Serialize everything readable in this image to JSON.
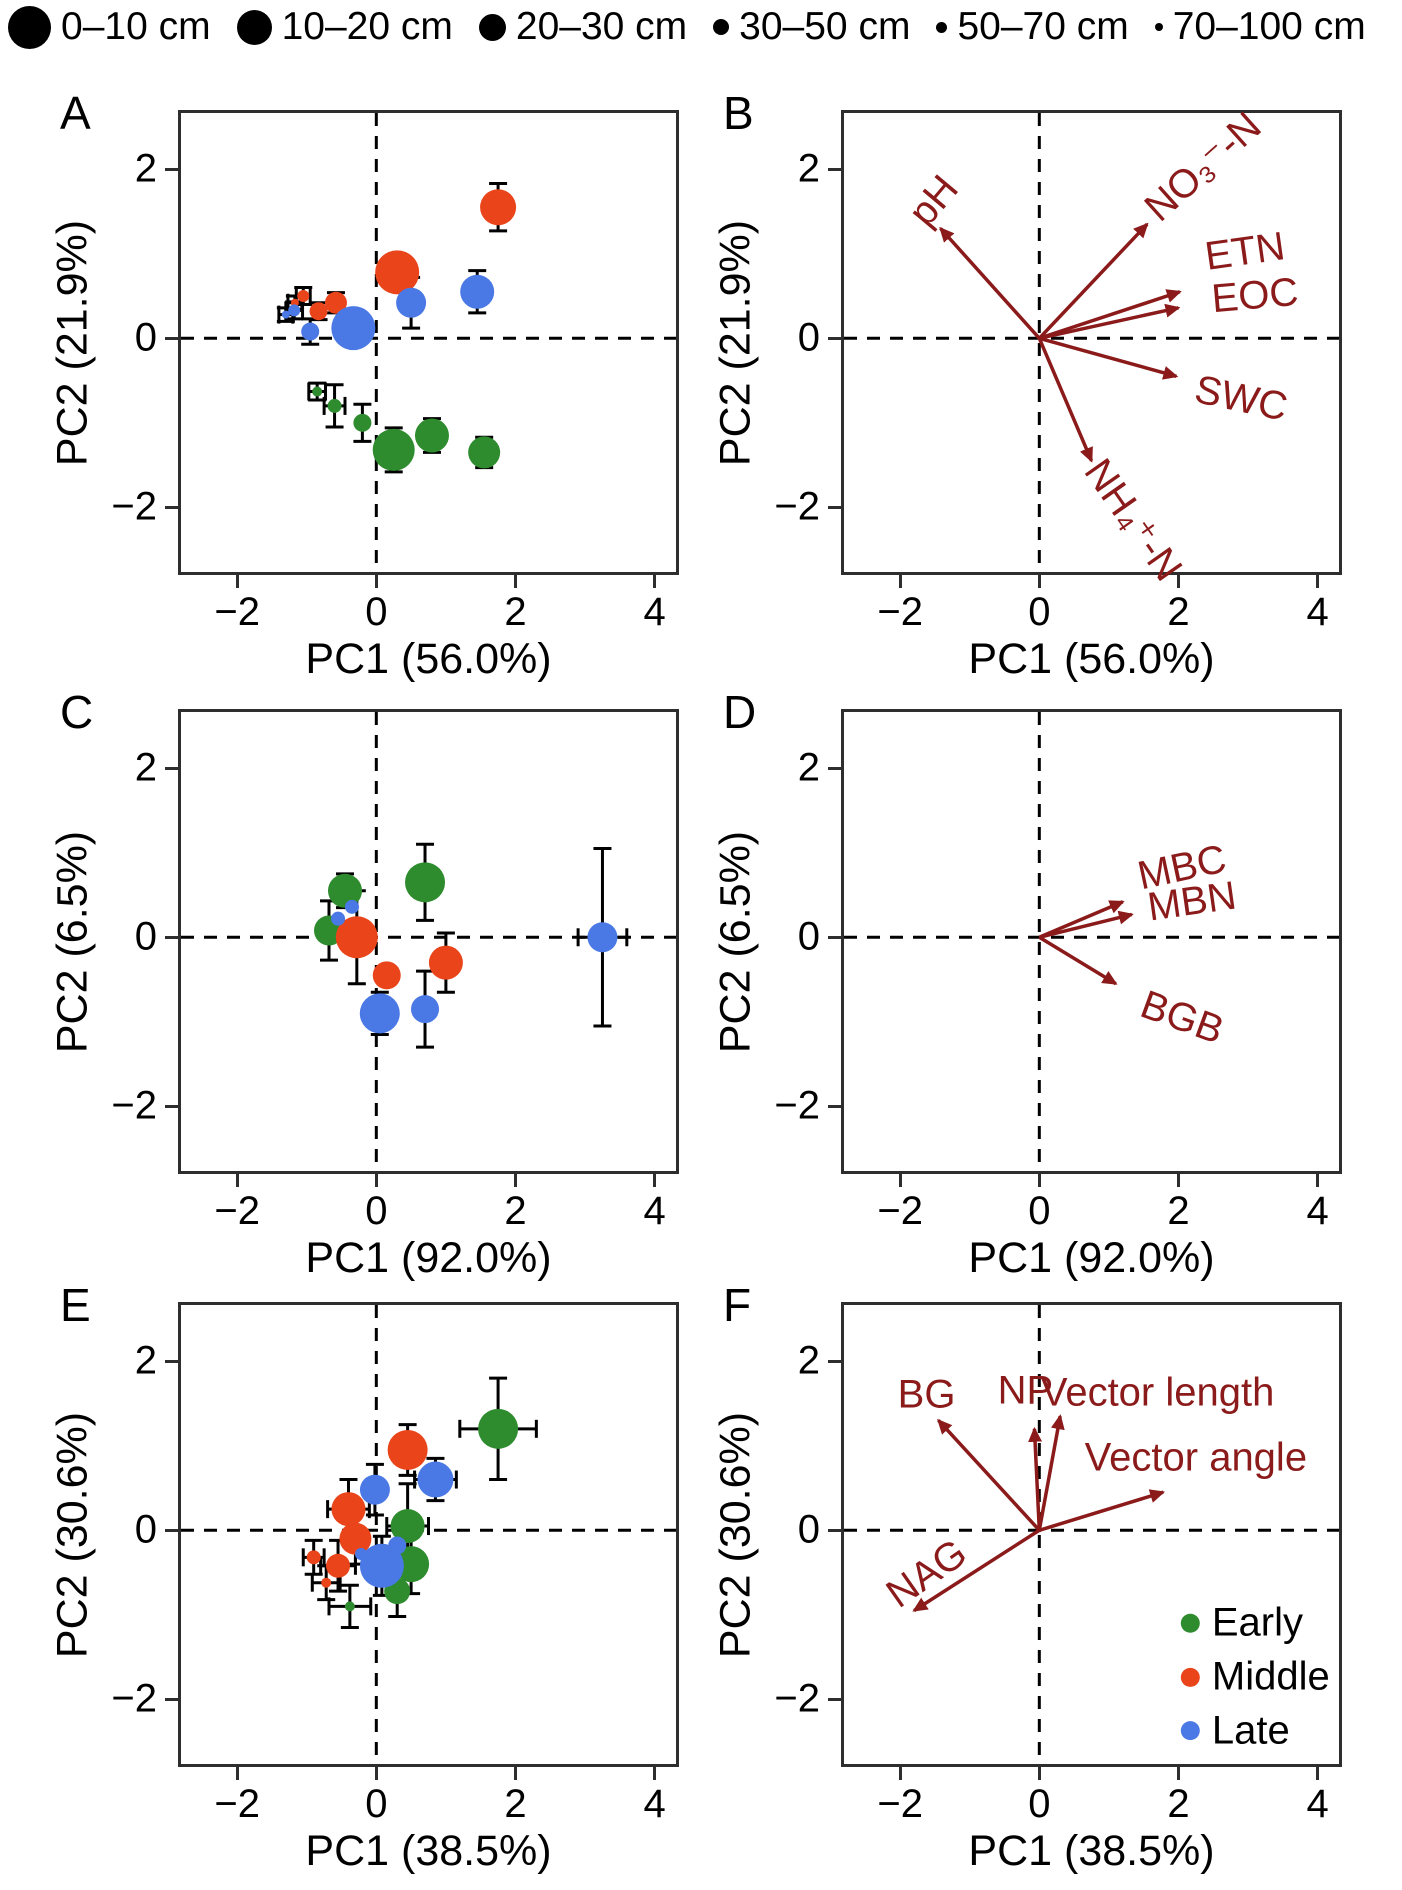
{
  "colors": {
    "early": "#2E8B2E",
    "middle": "#E9441A",
    "late": "#4A79E6",
    "vector": "#8B1A1A",
    "axis": "#2E2E2E",
    "errorbar": "#000000",
    "text": "#000000"
  },
  "size_legend": {
    "items": [
      {
        "label": "0–10 cm",
        "radius": 21.5
      },
      {
        "label": "10–20 cm",
        "radius": 17.5
      },
      {
        "label": "20–30 cm",
        "radius": 13.5
      },
      {
        "label": "30–50 cm",
        "radius": 8
      },
      {
        "label": "50–70 cm",
        "radius": 5.5
      },
      {
        "label": "70–100 cm",
        "radius": 4
      }
    ]
  },
  "axes": {
    "xlim": [
      -2.85,
      4.35
    ],
    "ylim": [
      -2.8,
      2.7
    ],
    "xtick_values": [
      -2,
      0,
      2,
      4
    ],
    "xtick_labels": [
      "−2",
      "0",
      "2",
      "4"
    ],
    "ytick_values": [
      -2,
      0,
      2
    ],
    "ytick_labels": [
      "−2",
      "0",
      "2"
    ]
  },
  "chart_data": [
    {
      "panel": "A",
      "type": "scatter",
      "xlabel": "PC1 (56.0%)",
      "ylabel": "PC2 (21.9%)",
      "series": [
        {
          "stage": "early",
          "name": "Early",
          "points": [
            {
              "x": 0.25,
              "y": -1.32,
              "r": 21,
              "ey": 0.26
            },
            {
              "x": 0.8,
              "y": -1.15,
              "r": 17,
              "ey": 0.2
            },
            {
              "x": 1.55,
              "y": -1.35,
              "r": 16,
              "ey": 0.18
            },
            {
              "x": -0.2,
              "y": -1.0,
              "r": 9,
              "ey": 0.22
            },
            {
              "x": -0.6,
              "y": -0.8,
              "r": 7,
              "ey": 0.25,
              "ex": 0.15
            },
            {
              "x": -0.85,
              "y": -0.63,
              "r": 5,
              "ey": 0.1,
              "ex": 0.12
            }
          ]
        },
        {
          "stage": "middle",
          "name": "Middle",
          "points": [
            {
              "x": 0.3,
              "y": 0.78,
              "r": 22,
              "ey": 0.22
            },
            {
              "x": 1.75,
              "y": 1.55,
              "r": 18,
              "ey": 0.28
            },
            {
              "x": -0.58,
              "y": 0.42,
              "r": 11,
              "ey": 0.12
            },
            {
              "x": -0.83,
              "y": 0.32,
              "r": 9,
              "ey": 0.1
            },
            {
              "x": -1.05,
              "y": 0.5,
              "r": 6,
              "ey": 0.1,
              "ex": 0.1
            },
            {
              "x": -1.17,
              "y": 0.42,
              "r": 4,
              "ey": 0.08,
              "ex": 0.1
            }
          ]
        },
        {
          "stage": "late",
          "name": "Late",
          "points": [
            {
              "x": -0.33,
              "y": 0.12,
              "r": 22,
              "ey": 0.18
            },
            {
              "x": 1.45,
              "y": 0.55,
              "r": 17,
              "ey": 0.25
            },
            {
              "x": 0.5,
              "y": 0.42,
              "r": 15,
              "ey": 0.3
            },
            {
              "x": -0.95,
              "y": 0.08,
              "r": 9,
              "ey": 0.15
            },
            {
              "x": -1.18,
              "y": 0.33,
              "r": 6,
              "ey": 0.1,
              "ex": 0.12
            },
            {
              "x": -1.3,
              "y": 0.28,
              "r": 4,
              "ey": 0.08,
              "ex": 0.1
            }
          ]
        }
      ]
    },
    {
      "panel": "B",
      "type": "biplot",
      "xlabel": "PC1 (56.0%)",
      "ylabel": "PC2 (21.9%)",
      "vectors": [
        {
          "label": "pH",
          "x": -1.42,
          "y": 1.3,
          "label_x": -1.52,
          "label_y": 1.62,
          "rot": -50
        },
        {
          "label": "NO₃⁻-N",
          "x": 1.55,
          "y": 1.35,
          "label_x": 2.35,
          "label_y": 2.02,
          "rot": -42
        },
        {
          "label": "ETN",
          "x": 2.02,
          "y": 0.55,
          "label_x": 2.95,
          "label_y": 1.02,
          "rot": -8
        },
        {
          "label": "EOC",
          "x": 2.0,
          "y": 0.36,
          "label_x": 3.1,
          "label_y": 0.5,
          "rot": -5
        },
        {
          "label": "SWC",
          "x": 1.97,
          "y": -0.45,
          "label_x": 2.9,
          "label_y": -0.72,
          "rot": 12
        },
        {
          "label": "NH₄⁺-N",
          "x": 0.75,
          "y": -1.45,
          "label_x": 1.35,
          "label_y": -2.15,
          "rot": 55
        }
      ]
    },
    {
      "panel": "C",
      "type": "scatter",
      "xlabel": "PC1 (92.0%)",
      "ylabel": "PC2 (6.5%)",
      "series": [
        {
          "stage": "early",
          "name": "Early",
          "points": [
            {
              "x": 0.7,
              "y": 0.65,
              "r": 20,
              "ey": 0.45
            },
            {
              "x": -0.45,
              "y": 0.55,
              "r": 17,
              "ey": 0.2
            },
            {
              "x": -0.68,
              "y": 0.08,
              "r": 15,
              "ey": 0.35,
              "ex": 0.15
            }
          ]
        },
        {
          "stage": "middle",
          "name": "Middle",
          "points": [
            {
              "x": -0.28,
              "y": 0.0,
              "r": 21,
              "ey": 0.55
            },
            {
              "x": 1.0,
              "y": -0.3,
              "r": 17,
              "ey": 0.35
            },
            {
              "x": 0.15,
              "y": -0.45,
              "r": 14
            }
          ]
        },
        {
          "stage": "late",
          "name": "Late",
          "points": [
            {
              "x": 0.05,
              "y": -0.9,
              "r": 20,
              "ey": 0.25
            },
            {
              "x": 0.7,
              "y": -0.85,
              "r": 14,
              "ey": 0.45
            },
            {
              "x": 3.25,
              "y": 0.0,
              "r": 15,
              "ey": 1.05,
              "ex": 0.35
            },
            {
              "x": -0.35,
              "y": 0.36,
              "r": 7
            },
            {
              "x": -0.55,
              "y": 0.22,
              "r": 7
            }
          ]
        }
      ]
    },
    {
      "panel": "D",
      "type": "biplot",
      "xlabel": "PC1 (92.0%)",
      "ylabel": "PC2 (6.5%)",
      "vectors": [
        {
          "label": "MBC",
          "x": 1.2,
          "y": 0.42,
          "label_x": 2.05,
          "label_y": 0.82,
          "rot": -12
        },
        {
          "label": "MBN",
          "x": 1.33,
          "y": 0.27,
          "label_x": 2.2,
          "label_y": 0.42,
          "rot": -8
        },
        {
          "label": "BGB",
          "x": 1.1,
          "y": -0.55,
          "label_x": 2.05,
          "label_y": -0.95,
          "rot": 20
        }
      ]
    },
    {
      "panel": "E",
      "type": "scatter",
      "xlabel": "PC1 (38.5%)",
      "ylabel": "PC2 (30.6%)",
      "series": [
        {
          "stage": "early",
          "name": "Early",
          "points": [
            {
              "x": 1.75,
              "y": 1.2,
              "r": 20,
              "ey": 0.6,
              "ex": 0.55
            },
            {
              "x": 0.45,
              "y": 0.05,
              "r": 17,
              "ey": 0.5,
              "ex": 0.3
            },
            {
              "x": 0.5,
              "y": -0.4,
              "r": 18,
              "ey": 0.35
            },
            {
              "x": 0.3,
              "y": -0.72,
              "r": 13,
              "ey": 0.3
            },
            {
              "x": -0.38,
              "y": -0.9,
              "r": 5,
              "ey": 0.25,
              "ex": 0.3
            }
          ]
        },
        {
          "stage": "middle",
          "name": "Middle",
          "points": [
            {
              "x": 0.45,
              "y": 0.95,
              "r": 20,
              "ey": 0.3
            },
            {
              "x": -0.4,
              "y": 0.25,
              "r": 17,
              "ey": 0.35,
              "ex": 0.3
            },
            {
              "x": -0.3,
              "y": -0.1,
              "r": 16,
              "ey": 0.3
            },
            {
              "x": -0.55,
              "y": -0.42,
              "r": 12,
              "ey": 0.3,
              "ex": 0.25
            },
            {
              "x": -0.9,
              "y": -0.32,
              "r": 7,
              "ey": 0.2,
              "ex": 0.15
            },
            {
              "x": -0.72,
              "y": -0.62,
              "r": 5,
              "ey": 0.2,
              "ex": 0.2
            }
          ]
        },
        {
          "stage": "late",
          "name": "Late",
          "points": [
            {
              "x": 0.08,
              "y": -0.42,
              "r": 22,
              "ey": 0.35
            },
            {
              "x": 0.85,
              "y": 0.6,
              "r": 18,
              "ey": 0.25,
              "ex": 0.3
            },
            {
              "x": -0.02,
              "y": 0.48,
              "r": 15,
              "ey": 0.3
            },
            {
              "x": 0.3,
              "y": -0.18,
              "r": 9
            },
            {
              "x": -0.22,
              "y": -0.28,
              "r": 6
            }
          ]
        }
      ]
    },
    {
      "panel": "F",
      "type": "biplot",
      "xlabel": "PC1 (38.5%)",
      "ylabel": "PC2 (30.6%)",
      "vectors": [
        {
          "label": "BG",
          "x": -1.45,
          "y": 1.3,
          "label_x": -1.62,
          "label_y": 1.6,
          "rot": 0
        },
        {
          "label": "NP",
          "x": -0.07,
          "y": 1.2,
          "label_x": -0.2,
          "label_y": 1.65,
          "rot": 0
        },
        {
          "label": "Vector length",
          "x": 0.3,
          "y": 1.35,
          "label_x": 1.7,
          "label_y": 1.62,
          "rot": 0
        },
        {
          "label": "Vector angle",
          "x": 1.78,
          "y": 0.45,
          "label_x": 2.25,
          "label_y": 0.85,
          "rot": 0
        },
        {
          "label": "NAG",
          "x": -1.8,
          "y": -0.95,
          "label_x": -1.62,
          "label_y": -0.52,
          "rot": -35
        }
      ],
      "legend": {
        "dot_x": 2.17,
        "label_x": 2.48,
        "items": [
          {
            "label": "Early",
            "color": "early",
            "y": -1.1
          },
          {
            "label": "Middle",
            "color": "middle",
            "y": -1.74
          },
          {
            "label": "Late",
            "color": "late",
            "y": -2.37
          }
        ]
      }
    }
  ]
}
